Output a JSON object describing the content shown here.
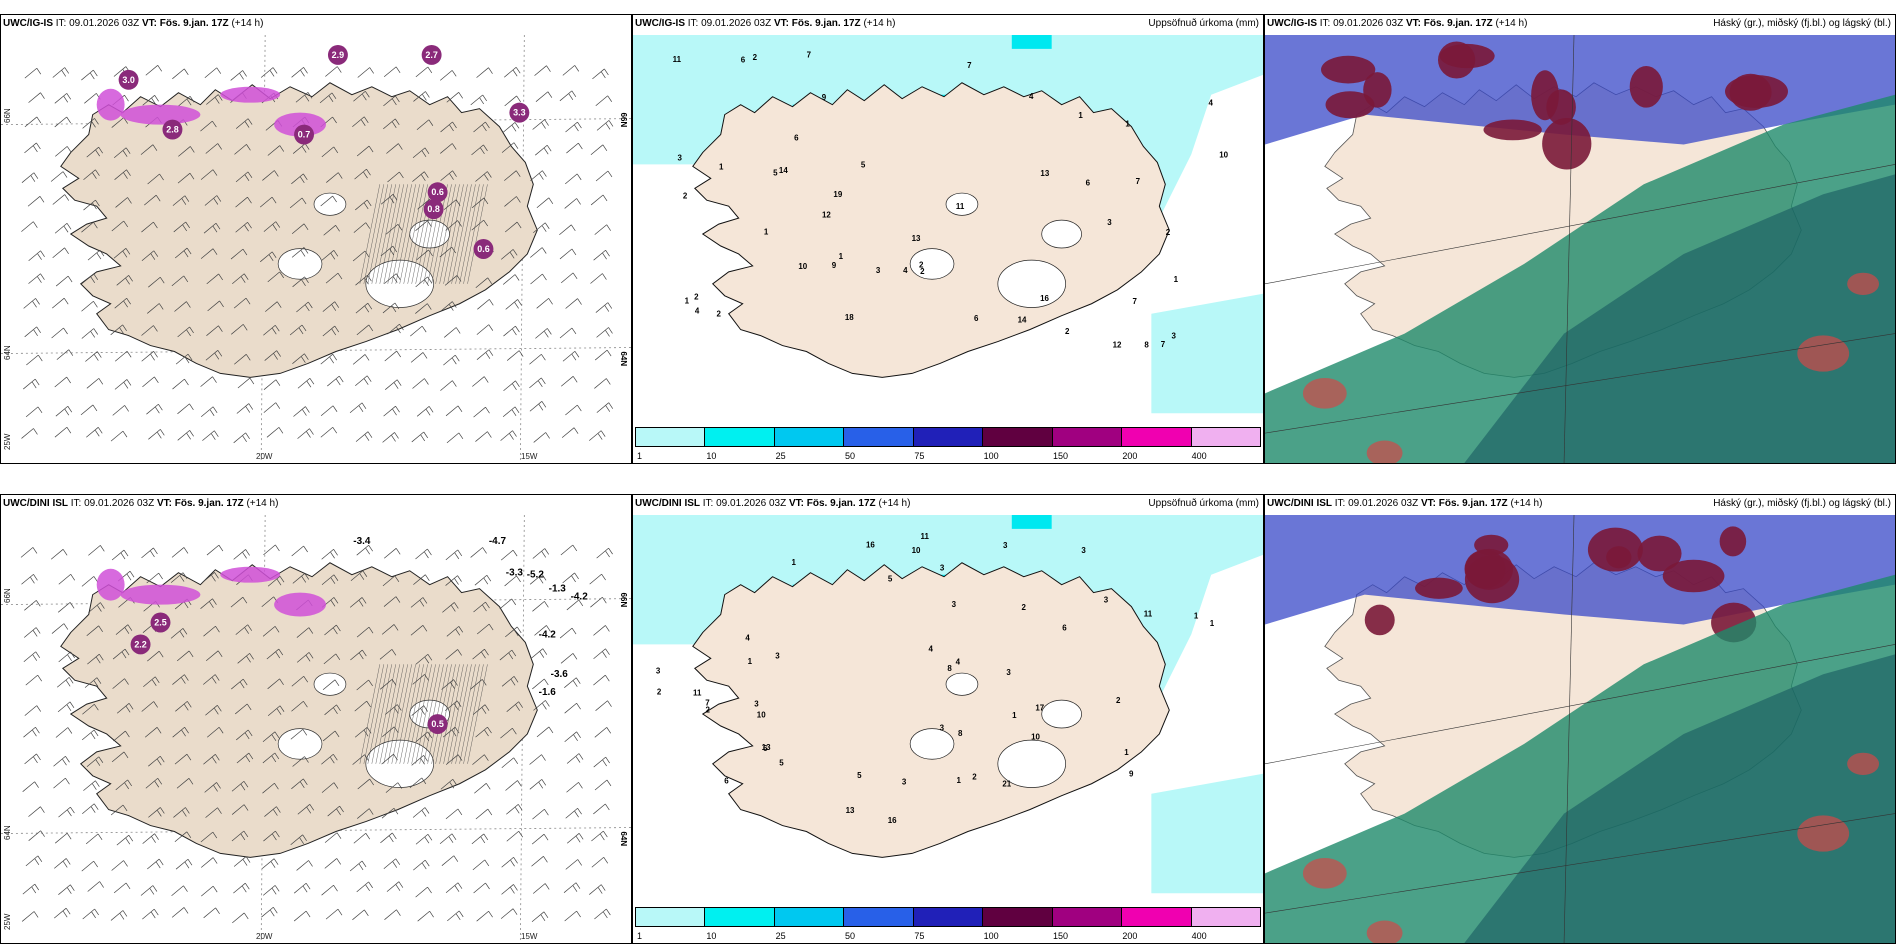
{
  "rows": [
    {
      "wind": {
        "model": "UWC/IG-IS",
        "it_label": "IT:",
        "it": "09.01.2026 03Z",
        "vt_label": "VT:",
        "vt": "Fös. 9.jan. 17Z",
        "lead": "(+14 h)",
        "lon_labels": [
          "20W",
          "15W"
        ],
        "lat_labels": [
          "66N",
          "64N",
          "25W"
        ],
        "right_lats": [
          "66N",
          "64N"
        ],
        "values": [
          "3.0",
          "2.8",
          "2.9",
          "2.7",
          "3.3",
          "0.7",
          "0.8",
          "0.6",
          "0.6"
        ]
      },
      "precip": {
        "model": "UWC/IG-IS",
        "it_label": "IT:",
        "it": "09.01.2026 03Z",
        "vt_label": "VT:",
        "vt": "Fös. 9.jan. 17Z",
        "lead": "(+14 h)",
        "title": "Uppsöfnuð úrkoma (mm)",
        "values": [
          "13",
          "5",
          "6",
          "3",
          "7",
          "9",
          "4",
          "12",
          "9",
          "6",
          "7",
          "7",
          "11",
          "12",
          "19",
          "16",
          "11",
          "10",
          "4",
          "5",
          "8",
          "14",
          "14",
          "10",
          "7",
          "13",
          "6",
          "2",
          "1",
          "1",
          "1",
          "3",
          "2",
          "1",
          "1",
          "3",
          "1",
          "2",
          "1",
          "18",
          "2",
          "3",
          "2",
          "2",
          "2",
          "4",
          "2",
          "6",
          "7",
          "4"
        ]
      },
      "cloud": {
        "model": "UWC/IG-IS",
        "it_label": "IT:",
        "it": "09.01.2026 03Z",
        "vt_label": "VT:",
        "vt": "Fös. 9.jan. 17Z",
        "lead": "(+14 h)",
        "title": "Háský (gr.), miðský (fj.bl.) og lágský (bl.)"
      }
    },
    {
      "wind": {
        "model": "UWC/DINI ISL",
        "it_label": "IT:",
        "it": "09.01.2026 03Z",
        "vt_label": "VT:",
        "vt": "Fös. 9.jan. 17Z",
        "lead": "(+14 h)",
        "lon_labels": [
          "20W",
          "15W"
        ],
        "lat_labels": [
          "66N",
          "64N",
          "25W"
        ],
        "right_lats": [
          "66N",
          "64N"
        ],
        "values": [
          "-3.4",
          "-4.7",
          "-3.3",
          "-5.2",
          "-1.3",
          "-4.2",
          "-4.2",
          "-3.6",
          "-1.6",
          "2.5",
          "2.2",
          "0.5"
        ]
      },
      "precip": {
        "model": "UWC/DINI ISL",
        "it_label": "IT:",
        "it": "09.01.2026 03Z",
        "vt_label": "VT:",
        "vt": "Fös. 9.jan. 17Z",
        "lead": "(+14 h)",
        "title": "Uppsöfnuð úrkoma (mm)",
        "values": [
          "6",
          "3",
          "1",
          "3",
          "8",
          "3",
          "10",
          "13",
          "11",
          "6",
          "11",
          "11",
          "10",
          "8",
          "16",
          "16",
          "9",
          "3",
          "6",
          "13",
          "21",
          "10",
          "5",
          "4",
          "4",
          "5",
          "7",
          "3",
          "3",
          "17",
          "4",
          "5",
          "2",
          "3",
          "1",
          "2",
          "1",
          "3",
          "2",
          "2",
          "1",
          "3",
          "3",
          "3",
          "2",
          "1",
          "1",
          "1"
        ]
      },
      "cloud": {
        "model": "UWC/DINI ISL",
        "it_label": "IT:",
        "it": "09.01.2026 03Z",
        "vt_label": "VT:",
        "vt": "Fös. 9.jan. 17Z",
        "lead": "(+14 h)",
        "title": "Háský (gr.), miðský (fj.bl.) og lágský (bl.)"
      }
    }
  ],
  "colorbar": {
    "ticks": [
      "1",
      "10",
      "25",
      "50",
      "75",
      "100",
      "150",
      "200",
      "400"
    ],
    "colors": [
      "#b8f8f8",
      "#00f0f0",
      "#00c8f0",
      "#2860e8",
      "#2020b8",
      "#600040",
      "#a00080",
      "#f000b0",
      "#f0b0f0"
    ]
  },
  "colors": {
    "land": "#f5e6d8",
    "wind_land": "#eadccb",
    "precip_light": "#b8f8f8",
    "precip_med": "#00e8f0",
    "high": "#7a1838",
    "mid": "#3848c8",
    "low": "#1e8a6a"
  }
}
